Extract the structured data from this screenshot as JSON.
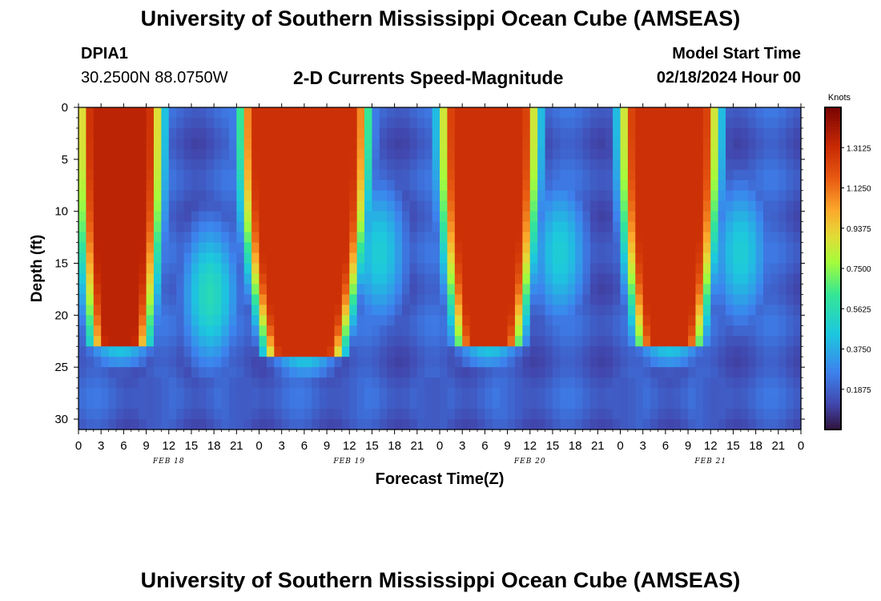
{
  "header": {
    "title": "University of Southern Mississippi Ocean Cube (AMSEAS)",
    "station": "DPIA1",
    "coords": "30.2500N  88.0750W",
    "plot_title": "2-D Currents Speed-Magnitude",
    "model_start_label": "Model Start Time",
    "model_start_value": "02/18/2024 Hour 00"
  },
  "footer": {
    "title": "University of Southern Mississippi Ocean Cube (AMSEAS)"
  },
  "chart_data": {
    "type": "heatmap",
    "title": "2-D Currents Speed-Magnitude",
    "xlabel": "Forecast Time(Z)",
    "ylabel": "Depth (ft)",
    "x_ticks": [
      "0",
      "3",
      "6",
      "9",
      "12",
      "15",
      "18",
      "21",
      "0",
      "3",
      "6",
      "9",
      "12",
      "15",
      "18",
      "21",
      "0",
      "3",
      "6",
      "9",
      "12",
      "15",
      "18",
      "21",
      "0",
      "3",
      "6",
      "9",
      "12",
      "15",
      "18",
      "21",
      "0"
    ],
    "x_range_hours": [
      0,
      96
    ],
    "date_labels": [
      {
        "text": "FEB 18",
        "hour": 12
      },
      {
        "text": "FEB 19",
        "hour": 36
      },
      {
        "text": "FEB 20",
        "hour": 60
      },
      {
        "text": "FEB 21",
        "hour": 84
      }
    ],
    "y_ticks": [
      0,
      5,
      10,
      15,
      20,
      25,
      30
    ],
    "y_range_ft": [
      0,
      31
    ],
    "colorbar": {
      "label": "Knots",
      "range": [
        0,
        1.5
      ],
      "ticks": [
        "1.3125",
        "1.1250",
        "0.9375",
        "0.7500",
        "0.5625",
        "0.3750",
        "0.1875"
      ],
      "tick_values": [
        1.3125,
        1.125,
        0.9375,
        0.75,
        0.5625,
        0.375,
        0.1875
      ]
    },
    "features": [
      {
        "name": "ebb-1",
        "center_hour": 5.5,
        "half_width_top_h": 3.5,
        "max_depth_ft": 23,
        "speed_kn": 1.35
      },
      {
        "name": "ebb-2",
        "center_hour": 30,
        "half_width_top_h": 6.5,
        "max_depth_ft": 24,
        "speed_kn": 1.3
      },
      {
        "name": "ebb-3",
        "center_hour": 54.5,
        "half_width_top_h": 4.5,
        "max_depth_ft": 23,
        "speed_kn": 1.3
      },
      {
        "name": "ebb-4",
        "center_hour": 78.5,
        "half_width_top_h": 4.5,
        "max_depth_ft": 23,
        "speed_kn": 1.3
      },
      {
        "name": "flood-1",
        "center_hour": 17.5,
        "depth_ft": 18,
        "speed_kn": 0.55
      },
      {
        "name": "flood-2",
        "center_hour": 40,
        "depth_ft": 14,
        "speed_kn": 0.48
      },
      {
        "name": "flood-3",
        "center_hour": 64,
        "depth_ft": 14,
        "speed_kn": 0.48
      },
      {
        "name": "flood-4",
        "center_hour": 88,
        "depth_ft": 14,
        "speed_kn": 0.48
      }
    ]
  }
}
